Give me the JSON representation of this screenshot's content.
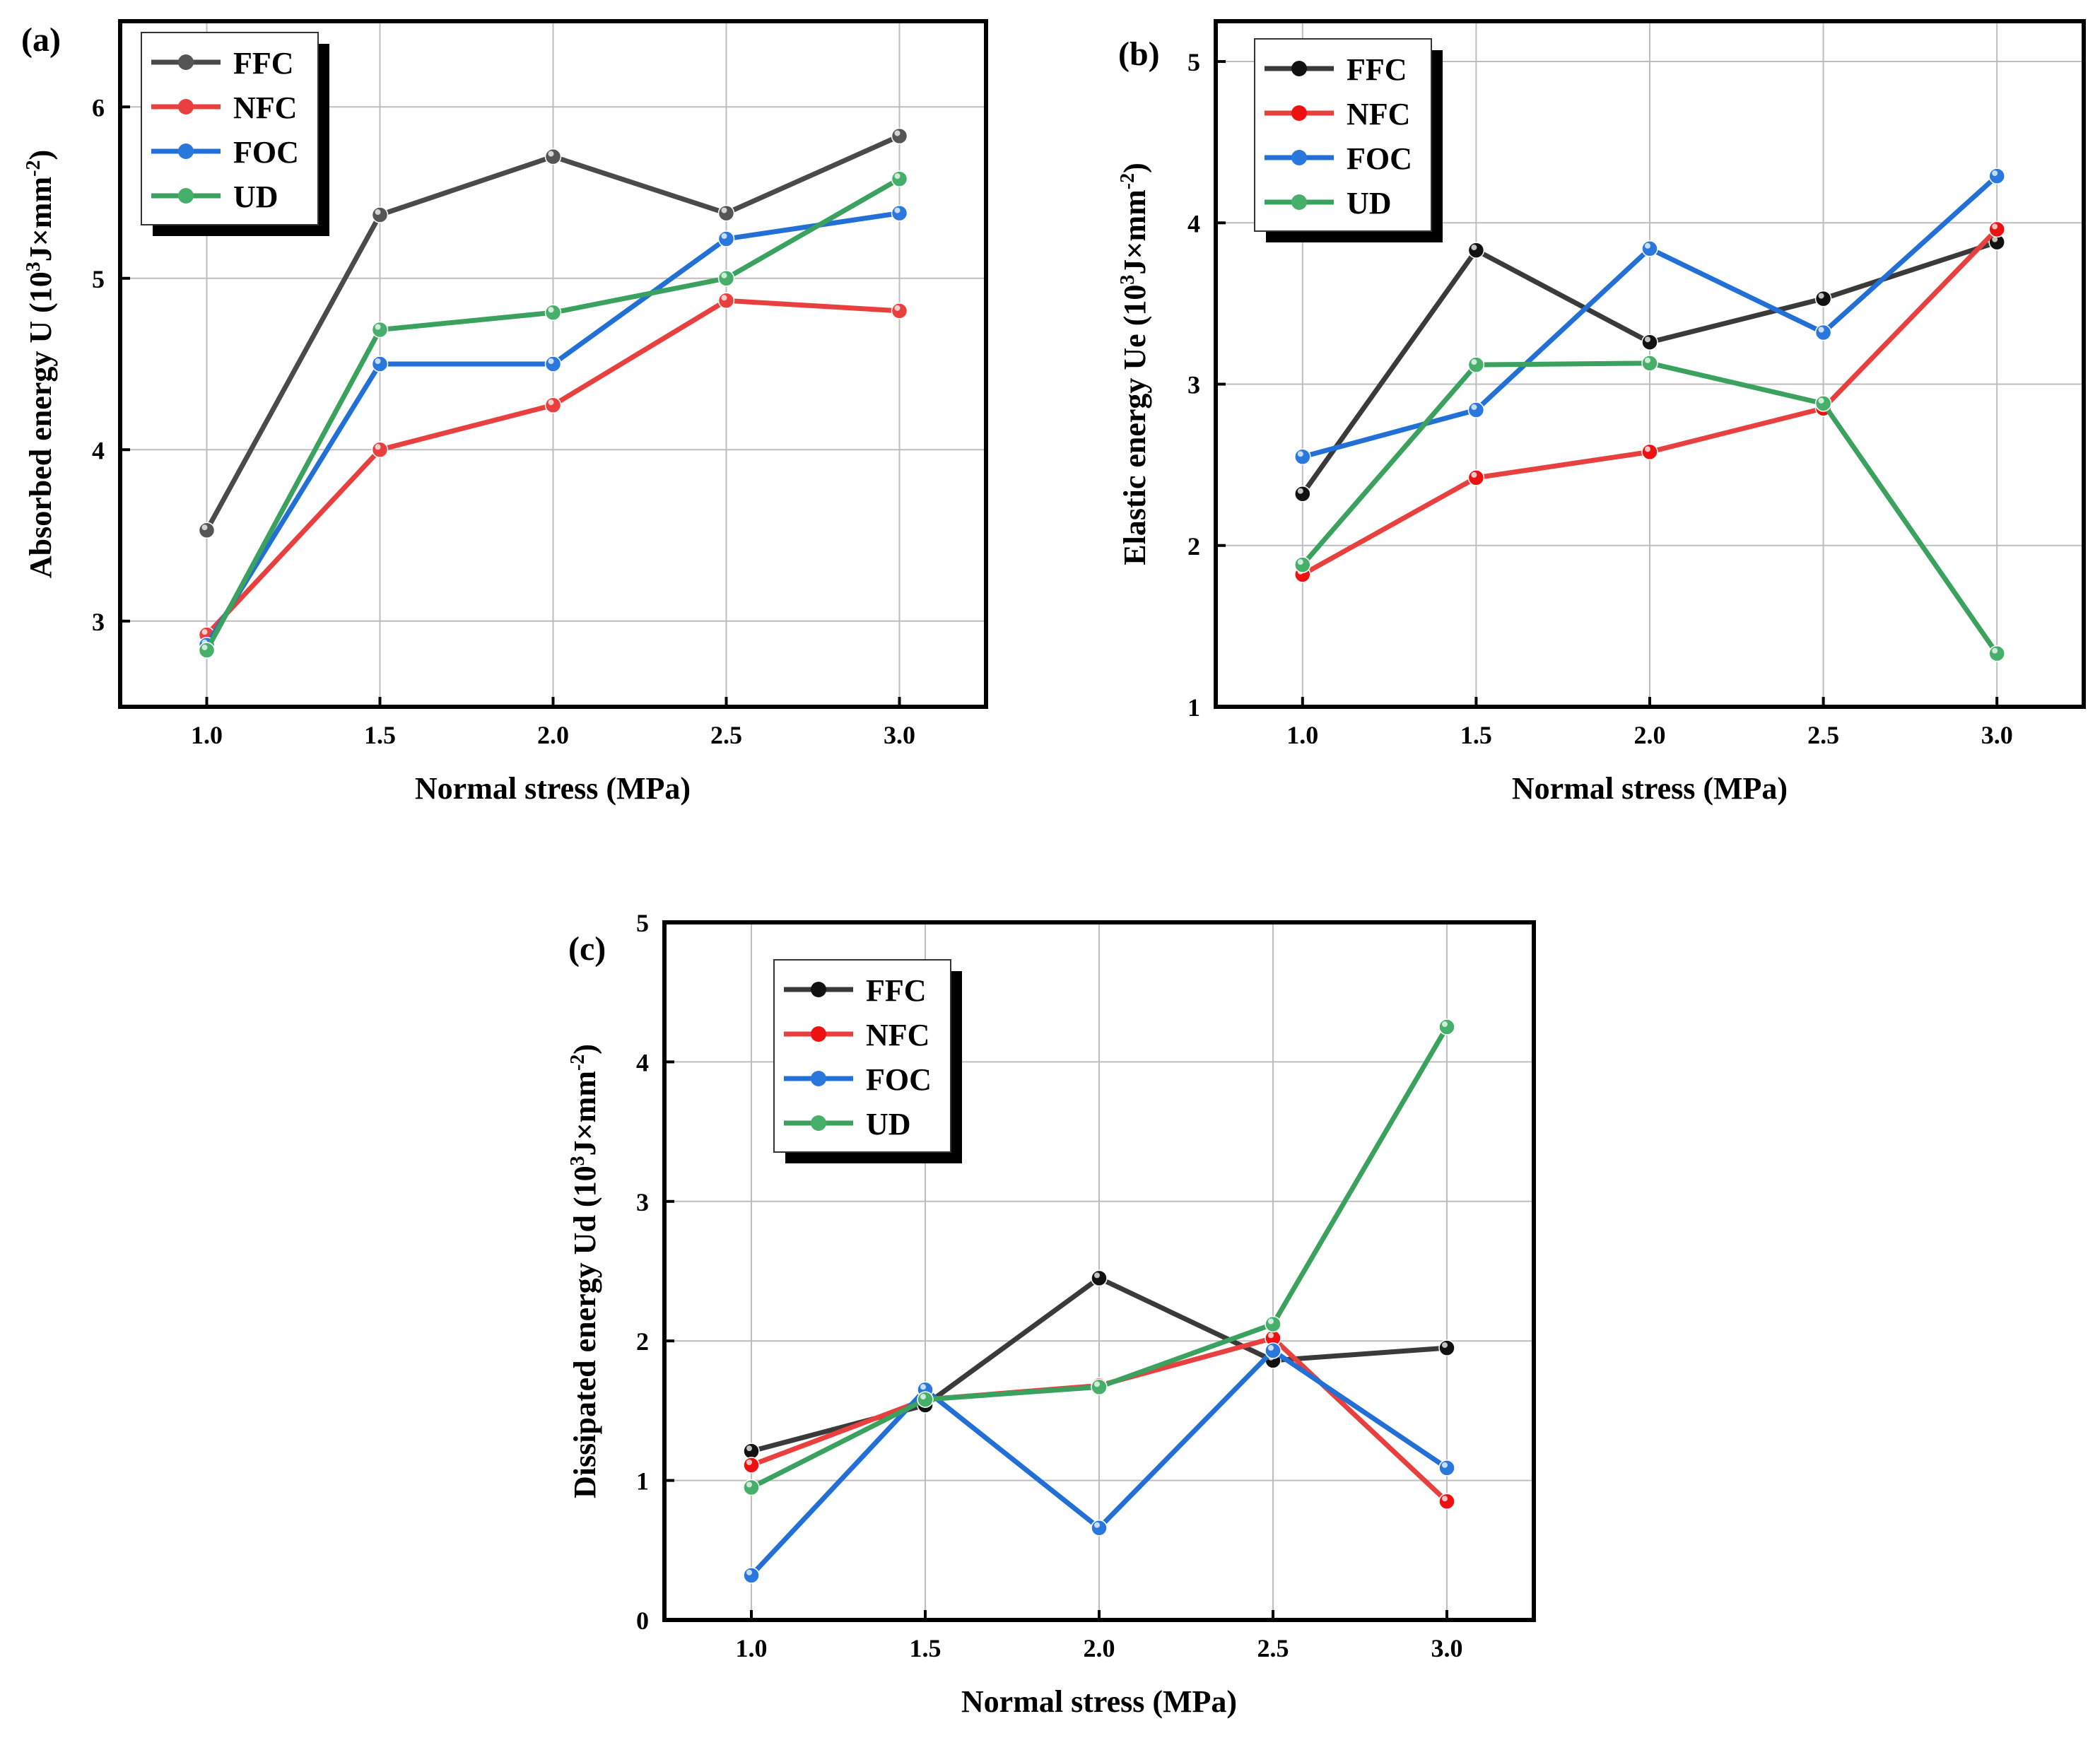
{
  "figure": {
    "panel_labels": [
      "(a)",
      "(b)",
      "(c)"
    ]
  },
  "chart_data": [
    {
      "type": "line",
      "panel_label": "(a)",
      "title": "",
      "xlabel": "Normal stress (MPa)",
      "ylabel": {
        "prefix": "Absorbed energy U  (10",
        "exp": "3",
        "mid": "J×mm",
        "exp2": "-2",
        "suffix": ")"
      },
      "x": [
        1.0,
        1.5,
        2.0,
        2.5,
        3.0
      ],
      "x_tick_labels": [
        "1.0",
        "1.5",
        "2.0",
        "2.5",
        "3.0"
      ],
      "y_ticks": [
        3,
        4,
        5,
        6
      ],
      "y_tick_labels": [
        "3",
        "4",
        "5",
        "6"
      ],
      "xlim": [
        0.75,
        3.25
      ],
      "ylim": [
        2.5,
        6.5
      ],
      "grid": true,
      "legend_position": "top-left",
      "series": [
        {
          "name": "FFC",
          "color": "#4a4a4a",
          "marker": "#555555",
          "values": [
            3.53,
            5.37,
            5.71,
            5.38,
            5.83
          ]
        },
        {
          "name": "NFC",
          "color": "#e8403f",
          "marker": "#e8403f",
          "values": [
            2.92,
            4.0,
            4.26,
            4.87,
            4.81
          ]
        },
        {
          "name": "FOC",
          "color": "#2270d6",
          "marker": "#2a78dd",
          "values": [
            2.86,
            4.5,
            4.5,
            5.23,
            5.38
          ]
        },
        {
          "name": "UD",
          "color": "#3aa15e",
          "marker": "#46b06a",
          "values": [
            2.83,
            4.7,
            4.8,
            5.0,
            5.58
          ]
        }
      ]
    },
    {
      "type": "line",
      "panel_label": "(b)",
      "title": "",
      "xlabel": "Normal stress (MPa)",
      "ylabel": {
        "prefix": "Elastic energy Ue (10",
        "exp": "3",
        "mid": "J×mm",
        "exp2": "-2",
        "suffix": ")"
      },
      "x": [
        1.0,
        1.5,
        2.0,
        2.5,
        3.0
      ],
      "x_tick_labels": [
        "1.0",
        "1.5",
        "2.0",
        "2.5",
        "3.0"
      ],
      "y_ticks": [
        1,
        2,
        3,
        4,
        5
      ],
      "y_tick_labels": [
        "1",
        "2",
        "3",
        "4",
        "5"
      ],
      "xlim": [
        0.75,
        3.25
      ],
      "ylim": [
        1,
        5.25
      ],
      "grid": true,
      "legend_position": "top-left",
      "series": [
        {
          "name": "FFC",
          "color": "#3a3a3a",
          "marker": "#111111",
          "values": [
            2.32,
            3.83,
            3.26,
            3.53,
            3.88
          ]
        },
        {
          "name": "NFC",
          "color": "#e8403f",
          "marker": "#ee1111",
          "values": [
            1.82,
            2.42,
            2.58,
            2.85,
            3.96
          ]
        },
        {
          "name": "FOC",
          "color": "#2270d6",
          "marker": "#2a78dd",
          "values": [
            2.55,
            2.84,
            3.84,
            3.32,
            4.29
          ]
        },
        {
          "name": "UD",
          "color": "#3aa15e",
          "marker": "#46b06a",
          "values": [
            1.88,
            3.12,
            3.13,
            2.88,
            1.33
          ]
        }
      ]
    },
    {
      "type": "line",
      "panel_label": "(c)",
      "title": "",
      "xlabel": "Normal stress (MPa)",
      "ylabel": {
        "prefix": "Dissipated energy Ud (10",
        "exp": "3",
        "mid": "J×mm",
        "exp2": "-2",
        "suffix": ")"
      },
      "x": [
        1.0,
        1.5,
        2.0,
        2.5,
        3.0
      ],
      "x_tick_labels": [
        "1.0",
        "1.5",
        "2.0",
        "2.5",
        "3.0"
      ],
      "y_ticks": [
        0,
        1,
        2,
        3,
        4,
        5
      ],
      "y_tick_labels": [
        "0",
        "1",
        "2",
        "3",
        "4",
        "5"
      ],
      "xlim": [
        0.75,
        3.25
      ],
      "ylim": [
        0,
        5
      ],
      "grid": true,
      "legend_position": "top-left",
      "series": [
        {
          "name": "FFC",
          "color": "#3a3a3a",
          "marker": "#111111",
          "values": [
            1.21,
            1.54,
            2.45,
            1.86,
            1.95
          ]
        },
        {
          "name": "NFC",
          "color": "#e8403f",
          "marker": "#ee1111",
          "values": [
            1.11,
            1.58,
            1.68,
            2.02,
            0.85
          ]
        },
        {
          "name": "FOC",
          "color": "#2270d6",
          "marker": "#2a78dd",
          "values": [
            0.32,
            1.65,
            0.66,
            1.93,
            1.09
          ]
        },
        {
          "name": "UD",
          "color": "#3aa15e",
          "marker": "#46b06a",
          "values": [
            0.95,
            1.58,
            1.67,
            2.12,
            4.25
          ]
        }
      ]
    }
  ]
}
